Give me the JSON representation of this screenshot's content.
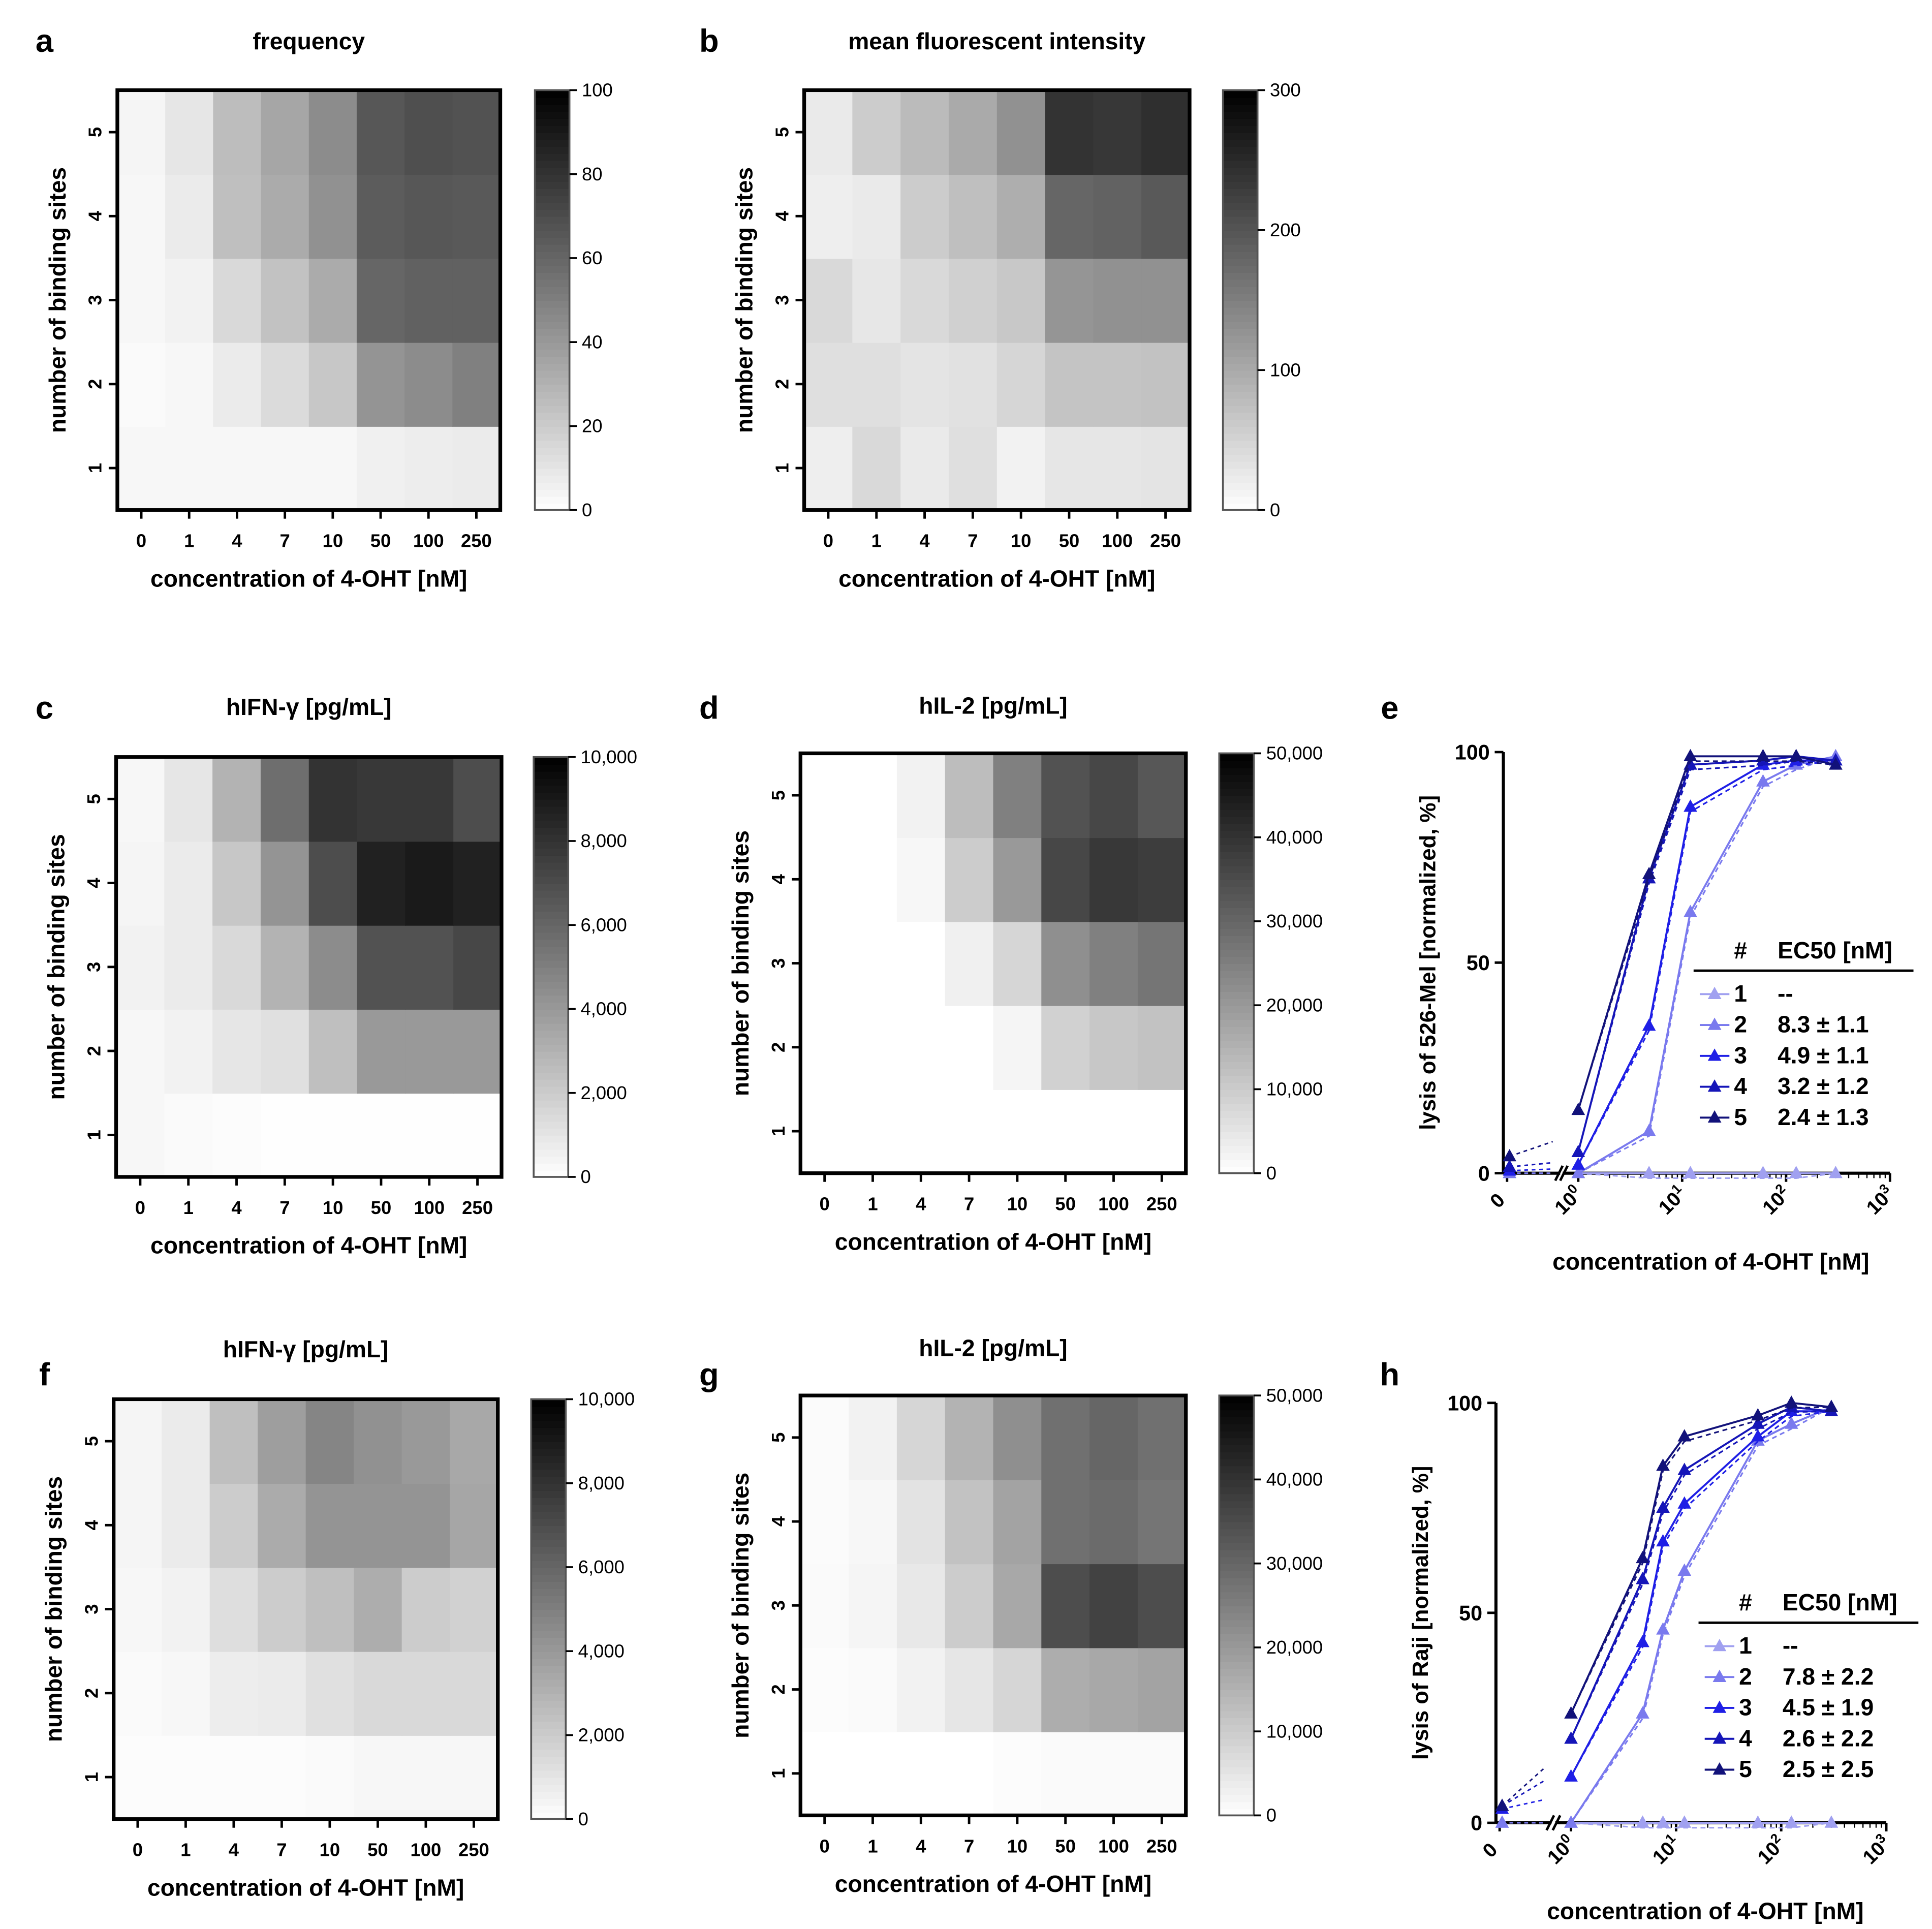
{
  "colors": {
    "ink": "#000000",
    "heat_low": "#ffffff",
    "heat_high": "#000000"
  },
  "chart_data": [
    {
      "panel": "a",
      "type": "heatmap",
      "title": "frequency",
      "xlabel": "concentration of 4-OHT [nM]",
      "ylabel": "number of binding sites",
      "x_categories": [
        "0",
        "1",
        "4",
        "7",
        "10",
        "50",
        "100",
        "250"
      ],
      "y_categories": [
        "1",
        "2",
        "3",
        "4",
        "5"
      ],
      "values": [
        [
          3,
          3,
          3,
          3,
          3,
          6,
          7,
          8
        ],
        [
          2,
          3,
          8,
          14,
          22,
          42,
          45,
          50
        ],
        [
          3,
          5,
          15,
          24,
          33,
          60,
          62,
          62
        ],
        [
          3,
          8,
          25,
          33,
          43,
          64,
          66,
          65
        ],
        [
          4,
          10,
          26,
          35,
          45,
          66,
          69,
          68
        ]
      ],
      "colorbar": {
        "min": 0,
        "max": 100,
        "ticks": [
          "0",
          "20",
          "40",
          "60",
          "80",
          "100"
        ]
      }
    },
    {
      "panel": "b",
      "type": "heatmap",
      "title": "mean fluorescent intensity",
      "xlabel": "concentration of 4-OHT [nM]",
      "ylabel": "number of binding sites",
      "x_categories": [
        "0",
        "1",
        "4",
        "7",
        "10",
        "50",
        "100",
        "250"
      ],
      "y_categories": [
        "1",
        "2",
        "3",
        "4",
        "5"
      ],
      "values": [
        [
          20,
          45,
          25,
          38,
          15,
          30,
          30,
          32
        ],
        [
          38,
          38,
          32,
          35,
          48,
          70,
          70,
          72
        ],
        [
          45,
          28,
          45,
          55,
          65,
          125,
          130,
          130
        ],
        [
          20,
          25,
          60,
          75,
          95,
          180,
          185,
          195
        ],
        [
          25,
          60,
          80,
          100,
          130,
          240,
          235,
          245
        ]
      ],
      "colorbar": {
        "min": 0,
        "max": 300,
        "ticks": [
          "0",
          "100",
          "200",
          "300"
        ]
      }
    },
    {
      "panel": "c",
      "type": "heatmap",
      "title": "hIFN-γ [pg/mL]",
      "xlabel": "concentration of 4-OHT [nM]",
      "ylabel": "number of binding sites",
      "x_categories": [
        "0",
        "1",
        "4",
        "7",
        "10",
        "50",
        "100",
        "250"
      ],
      "y_categories": [
        "1",
        "2",
        "3",
        "4",
        "5"
      ],
      "values": [
        [
          300,
          200,
          100,
          50,
          50,
          50,
          50,
          50
        ],
        [
          300,
          500,
          1000,
          1200,
          2500,
          4000,
          4000,
          4000
        ],
        [
          500,
          800,
          1500,
          3000,
          4500,
          6800,
          6800,
          7200
        ],
        [
          400,
          800,
          2200,
          4200,
          7000,
          8700,
          9000,
          8700
        ],
        [
          300,
          1000,
          3000,
          5700,
          8000,
          7800,
          7800,
          7000
        ]
      ],
      "colorbar": {
        "min": 0,
        "max": 10000,
        "ticks": [
          "0",
          "2,000",
          "4,000",
          "6,000",
          "8,000",
          "10,000"
        ]
      }
    },
    {
      "panel": "d",
      "type": "heatmap",
      "title": "hIL-2 [pg/mL]",
      "xlabel": "concentration of 4-OHT [nM]",
      "ylabel": "number of binding sites",
      "x_categories": [
        "0",
        "1",
        "4",
        "7",
        "10",
        "50",
        "100",
        "250"
      ],
      "y_categories": [
        "1",
        "2",
        "3",
        "4",
        "5"
      ],
      "values": [
        [
          0,
          0,
          0,
          0,
          0,
          0,
          0,
          0
        ],
        [
          0,
          0,
          0,
          0,
          2000,
          9000,
          11000,
          12000
        ],
        [
          0,
          0,
          0,
          3000,
          8000,
          22000,
          25000,
          27000
        ],
        [
          0,
          0,
          1500,
          10000,
          20000,
          36000,
          39000,
          38000
        ],
        [
          0,
          0,
          2500,
          13000,
          25000,
          34000,
          36000,
          33000
        ]
      ],
      "colorbar": {
        "min": 0,
        "max": 50000,
        "ticks": [
          "0",
          "10,000",
          "20,000",
          "30,000",
          "40,000",
          "50,000"
        ]
      }
    },
    {
      "panel": "e",
      "type": "line",
      "xscale": "log",
      "ylabel": "lysis of 526-Mel [normalized, %]",
      "xlabel": "concentration of 4-OHT [nM]",
      "x_tick_labels": [
        "0",
        "10^0",
        "10^1",
        "10^2",
        "10^3"
      ],
      "ylim": [
        0,
        100
      ],
      "y_ticks": [
        "0",
        "50",
        "100"
      ],
      "legend_header": [
        "#",
        "EC50 [nM]"
      ],
      "x": [
        1,
        4.8,
        12,
        60,
        125,
        300
      ],
      "series": [
        {
          "name": "1",
          "ec50": "--",
          "color": "#a0a0f0",
          "values": [
            0,
            0,
            0,
            0,
            0,
            0
          ]
        },
        {
          "name": "2",
          "ec50": "8.3 ± 1.1",
          "color": "#7a7aee",
          "values": [
            0,
            10,
            62,
            93,
            97,
            99
          ]
        },
        {
          "name": "3",
          "ec50": "4.9 ± 1.1",
          "color": "#1f1fe6",
          "values": [
            2,
            35,
            87,
            97,
            98,
            98
          ]
        },
        {
          "name": "4",
          "ec50": "3.2 ± 1.2",
          "color": "#1515b8",
          "values": [
            5,
            70,
            97,
            98,
            99,
            98
          ]
        },
        {
          "name": "5",
          "ec50": "2.4 ± 1.3",
          "color": "#12127a",
          "values": [
            15,
            71,
            99,
            99,
            99,
            97
          ]
        }
      ]
    },
    {
      "panel": "f",
      "type": "heatmap",
      "title": "hIFN-γ [pg/mL]",
      "xlabel": "concentration of 4-OHT [nM]",
      "ylabel": "number of binding sites",
      "x_categories": [
        "0",
        "1",
        "4",
        "7",
        "10",
        "50",
        "100",
        "250"
      ],
      "y_categories": [
        "1",
        "2",
        "3",
        "4",
        "5"
      ],
      "values": [
        [
          100,
          100,
          100,
          100,
          200,
          300,
          300,
          300
        ],
        [
          200,
          300,
          700,
          800,
          1200,
          1500,
          1500,
          1500
        ],
        [
          300,
          500,
          1300,
          2000,
          2500,
          3200,
          2000,
          1800
        ],
        [
          400,
          800,
          2000,
          3300,
          4200,
          4200,
          4200,
          3500
        ],
        [
          400,
          800,
          2500,
          3800,
          4800,
          4300,
          4000,
          3400
        ]
      ],
      "colorbar": {
        "min": 0,
        "max": 10000,
        "ticks": [
          "0",
          "2,000",
          "4,000",
          "6,000",
          "8,000",
          "10,000"
        ]
      }
    },
    {
      "panel": "g",
      "type": "heatmap",
      "title": "hIL-2 [pg/mL]",
      "xlabel": "concentration of 4-OHT [nM]",
      "ylabel": "number of binding sites",
      "x_categories": [
        "0",
        "1",
        "4",
        "7",
        "10",
        "50",
        "100",
        "250"
      ],
      "y_categories": [
        "1",
        "2",
        "3",
        "4",
        "5"
      ],
      "values": [
        [
          0,
          0,
          0,
          0,
          500,
          1000,
          1000,
          1000
        ],
        [
          500,
          1000,
          2500,
          5000,
          8000,
          16000,
          17000,
          18000
        ],
        [
          1000,
          2000,
          4500,
          10000,
          17000,
          35000,
          37000,
          35000
        ],
        [
          800,
          1500,
          5500,
          12000,
          18000,
          28000,
          29000,
          27000
        ],
        [
          800,
          2500,
          8000,
          15000,
          22000,
          28000,
          30000,
          28000
        ]
      ],
      "colorbar": {
        "min": 0,
        "max": 50000,
        "ticks": [
          "0",
          "10,000",
          "20,000",
          "30,000",
          "40,000",
          "50,000"
        ]
      }
    },
    {
      "panel": "h",
      "type": "line",
      "xscale": "log",
      "ylabel": "lysis of Raji [normalized, %]",
      "xlabel": "concentration of 4-OHT [nM]",
      "x_tick_labels": [
        "0",
        "10^0",
        "10^1",
        "10^2",
        "10^3"
      ],
      "ylim": [
        0,
        100
      ],
      "y_ticks": [
        "0",
        "50",
        "100"
      ],
      "legend_header": [
        "#",
        "EC50 [nM]"
      ],
      "x": [
        1,
        4.8,
        7.5,
        12,
        60,
        125,
        300
      ],
      "series": [
        {
          "name": "1",
          "ec50": "--",
          "color": "#a0a0f0",
          "values": [
            0,
            0,
            0,
            0,
            0,
            0,
            0
          ]
        },
        {
          "name": "2",
          "ec50": "7.8 ± 2.2",
          "color": "#7a7aee",
          "values": [
            0,
            26,
            46,
            60,
            91,
            95,
            99
          ]
        },
        {
          "name": "3",
          "ec50": "4.5 ± 1.9",
          "color": "#1f1fe6",
          "values": [
            11,
            43,
            67,
            76,
            92,
            98,
            98
          ]
        },
        {
          "name": "4",
          "ec50": "2.6 ± 2.2",
          "color": "#1515b8",
          "values": [
            20,
            58,
            75,
            84,
            95,
            99,
            98
          ]
        },
        {
          "name": "5",
          "ec50": "2.5 ± 2.5",
          "color": "#12127a",
          "values": [
            26,
            63,
            85,
            92,
            97,
            100,
            99
          ]
        }
      ]
    }
  ]
}
